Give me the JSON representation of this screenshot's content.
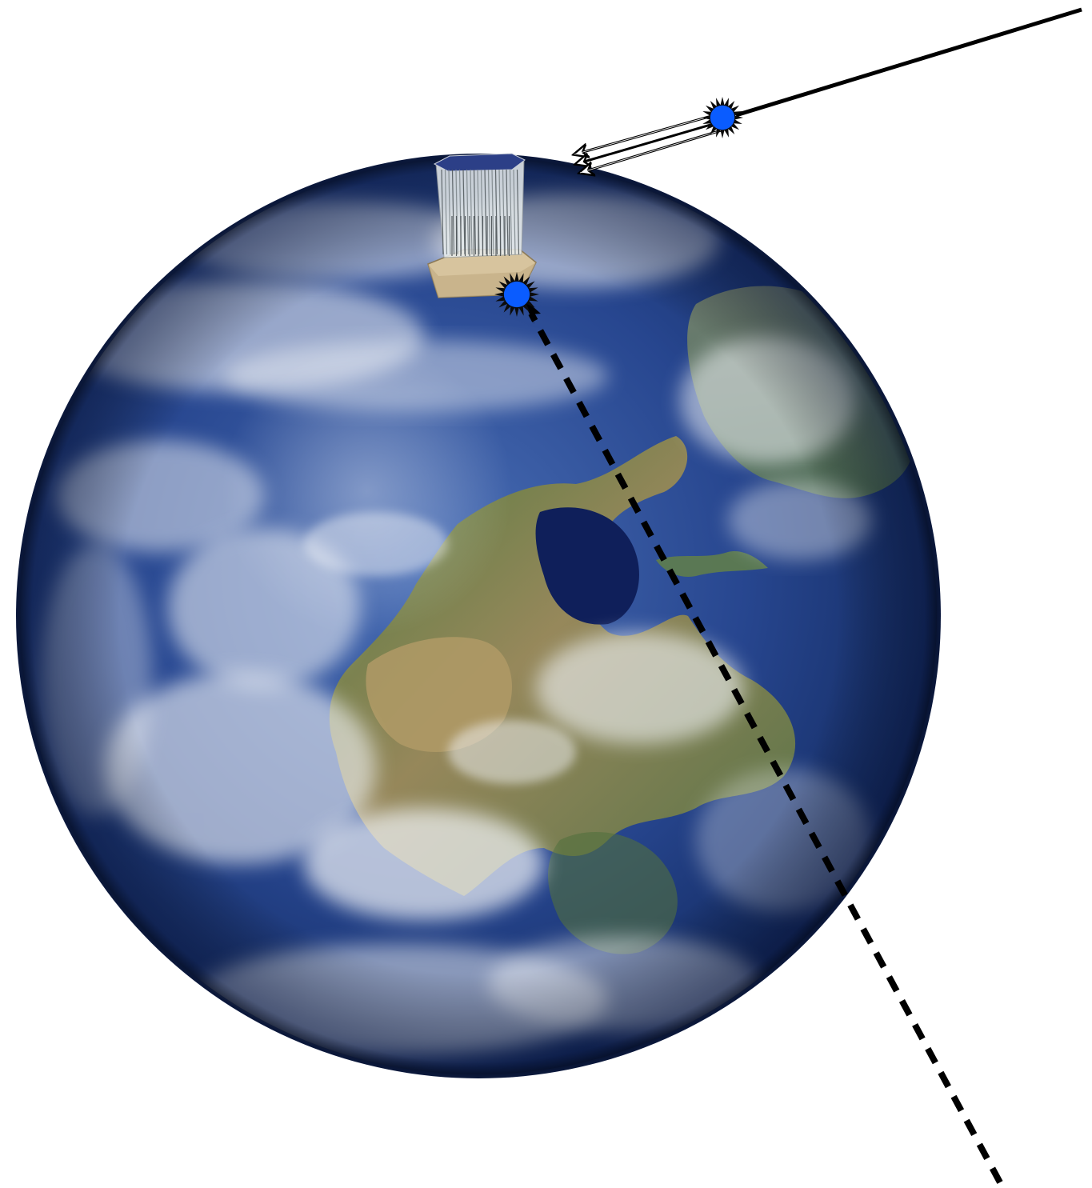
{
  "diagram": {
    "elements": [
      "earth",
      "detector",
      "downgoing-track",
      "secondary-particle-bundle",
      "upgoing-track",
      "interaction-vertex-above",
      "interaction-vertex-detector"
    ]
  },
  "colors": {
    "ocean_dark": "#0c1b4a",
    "ocean": "#1f3f86",
    "ocean_light": "#3c63ad",
    "land_green": "#5d7a3c",
    "land_tan": "#a4915c",
    "cloud": "#f4f6fa",
    "detector_base": "#d8c6a2",
    "detector_strings": "#9aa3a6",
    "vertex_blue": "#0a5cff",
    "vertex_spikes": "#0b0b0b",
    "track": "#000000"
  }
}
